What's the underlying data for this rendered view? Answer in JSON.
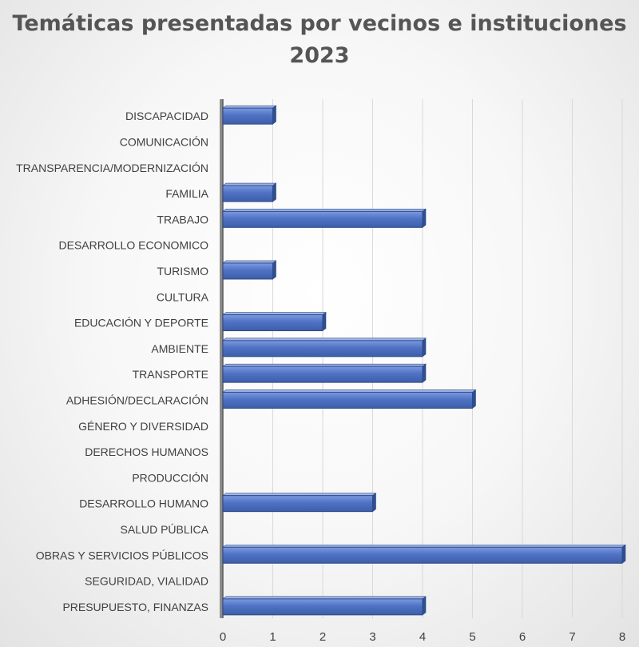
{
  "chart_data": {
    "type": "bar",
    "orientation": "horizontal",
    "title_lines": [
      "Temáticas presentadas por vecinos e instituciones",
      "2023"
    ],
    "categories": [
      "DISCAPACIDAD",
      "COMUNICACIÓN",
      "TRANSPARENCIA/MODERNIZACIÓN",
      "FAMILIA",
      "TRABAJO",
      "DESARROLLO ECONOMICO",
      "TURISMO",
      "CULTURA",
      "EDUCACIÓN Y DEPORTE",
      "AMBIENTE",
      "TRANSPORTE",
      "ADHESIÓN/DECLARACIÓN",
      "GÉNERO Y DIVERSIDAD",
      "DERECHOS HUMANOS",
      "PRODUCCIÓN",
      "DESARROLLO HUMANO",
      "SALUD PÚBLICA",
      "OBRAS Y SERVICIOS PÚBLICOS",
      "SEGURIDAD, VIALIDAD",
      "PRESUPUESTO, FINANZAS"
    ],
    "values": [
      1,
      0,
      0,
      1,
      4,
      0,
      1,
      0,
      2,
      4,
      4,
      5,
      0,
      0,
      0,
      3,
      0,
      8,
      0,
      4
    ],
    "xlim": [
      0,
      8
    ],
    "x_ticks": [
      "0",
      "1",
      "2",
      "3",
      "4",
      "5",
      "6",
      "7",
      "8"
    ],
    "grid": true,
    "legend": "none",
    "bar_color": "#4f72c4",
    "bar_edge_color": "#2e4a87",
    "grid_color": "#d9d9d9",
    "axis_color": "#595959",
    "label_color": "#404040",
    "title_color": "#555555"
  }
}
